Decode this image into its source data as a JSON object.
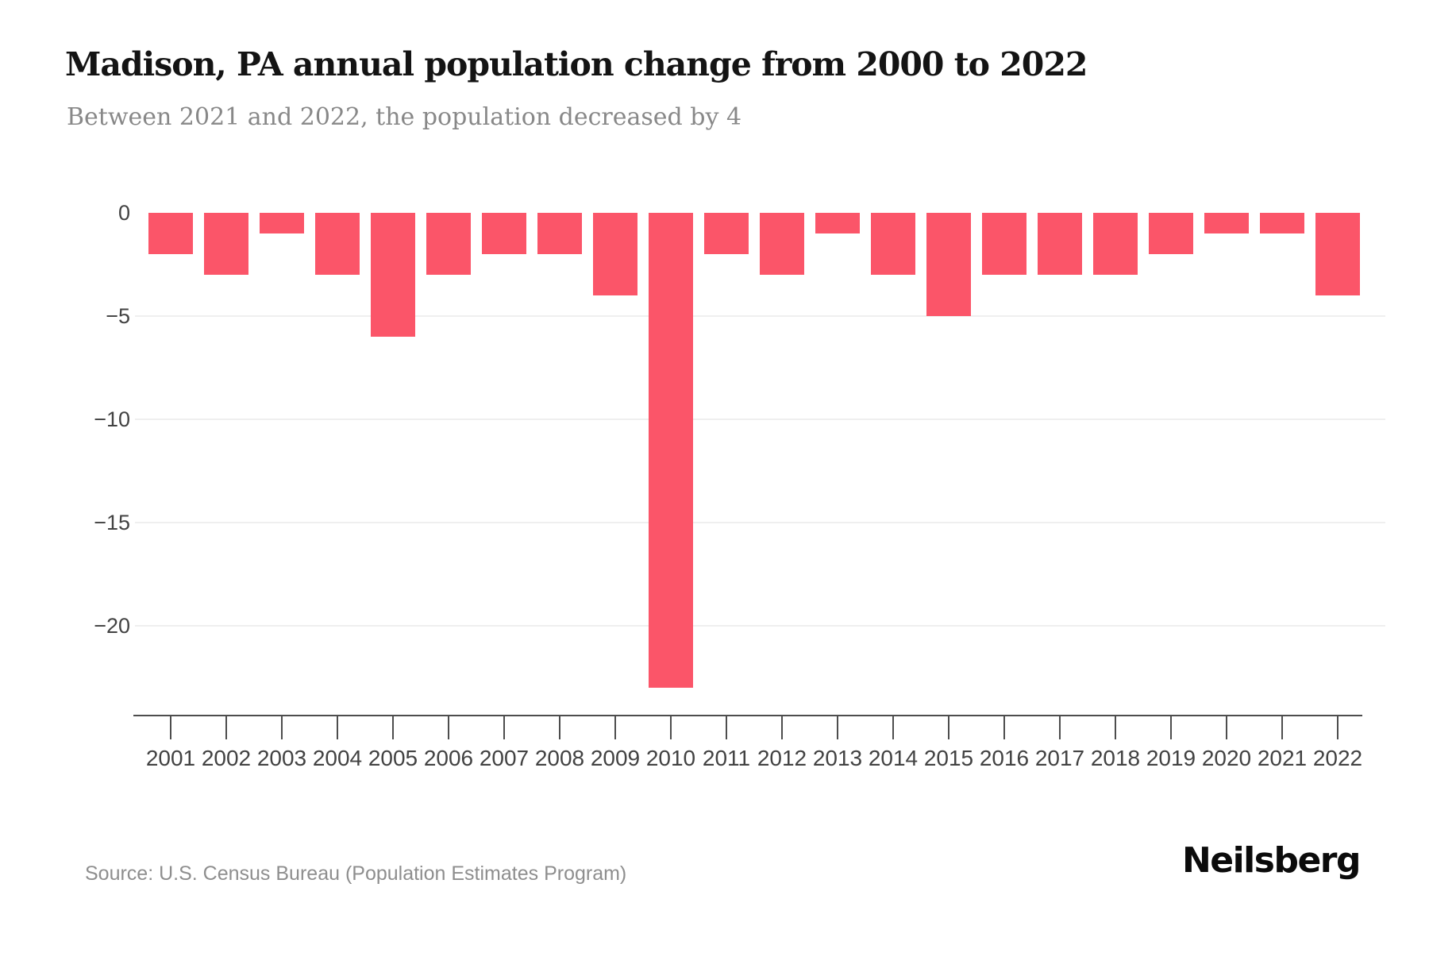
{
  "page": {
    "title": "Madison, PA annual population change from 2000 to 2022",
    "subtitle": "Between 2021 and 2022, the population decreased by 4",
    "source": "Source: U.S. Census Bureau (Population Estimates Program)",
    "brand": "Neilsberg"
  },
  "colors": {
    "bar": "#fb5569",
    "gridline": "#efefef",
    "axis_line": "#4d4d4d",
    "axis_label": "#424242",
    "title": "#141414",
    "subtitle": "#888888",
    "source": "#8e8e8e",
    "brand": "#0b0b0b"
  },
  "chart_data": {
    "type": "bar",
    "title": "Madison, PA annual population change from 2000 to 2022",
    "subtitle": "Between 2021 and 2022, the population decreased by 4",
    "categories": [
      "2001",
      "2002",
      "2003",
      "2004",
      "2005",
      "2006",
      "2007",
      "2008",
      "2009",
      "2010",
      "2011",
      "2012",
      "2013",
      "2014",
      "2015",
      "2016",
      "2017",
      "2018",
      "2019",
      "2020",
      "2021",
      "2022"
    ],
    "values": [
      -2,
      -3,
      -1,
      -3,
      -6,
      -3,
      -2,
      -2,
      -4,
      -23,
      -2,
      -3,
      -1,
      -3,
      -5,
      -3,
      -3,
      -3,
      -2,
      -1,
      -1,
      -4
    ],
    "xlabel": "",
    "ylabel": "",
    "ylim": [
      -24.3,
      0
    ],
    "yticks": [
      {
        "value": 0,
        "label": "0"
      },
      {
        "value": -5,
        "label": "−5"
      },
      {
        "value": -10,
        "label": "−10"
      },
      {
        "value": -15,
        "label": "−15"
      },
      {
        "value": -20,
        "label": "−20"
      }
    ],
    "grid": true,
    "legend": "none",
    "bar_color": "#fb5569"
  }
}
